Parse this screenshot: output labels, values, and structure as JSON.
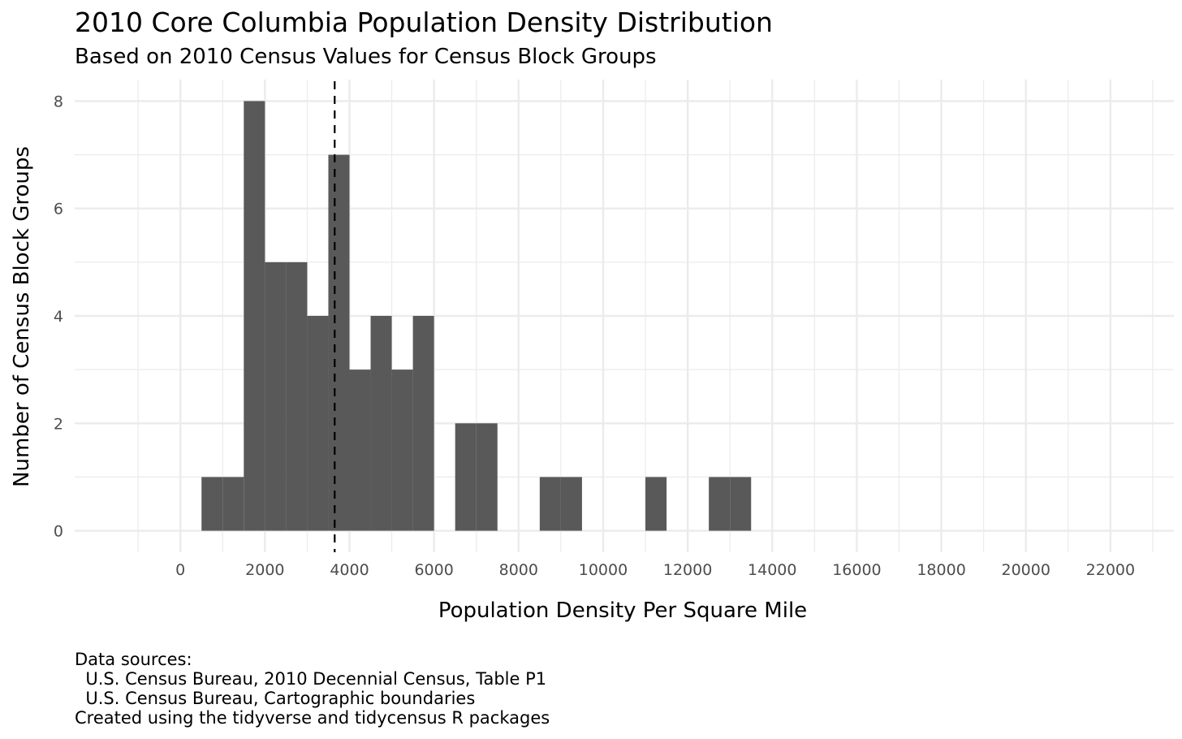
{
  "chart_data": {
    "type": "bar",
    "title": "2010 Core Columbia Population Density Distribution",
    "subtitle": "Based on 2010 Census Values for Census Block Groups",
    "xlabel": "Population Density Per Square Mile",
    "ylabel": "Number of Census Block Groups",
    "bin_width": 500,
    "bins": [
      {
        "x0": 500,
        "x1": 1000,
        "count": 1
      },
      {
        "x0": 1000,
        "x1": 1500,
        "count": 1
      },
      {
        "x0": 1500,
        "x1": 2000,
        "count": 8
      },
      {
        "x0": 2000,
        "x1": 2500,
        "count": 5
      },
      {
        "x0": 2500,
        "x1": 3000,
        "count": 5
      },
      {
        "x0": 3000,
        "x1": 3500,
        "count": 4
      },
      {
        "x0": 3500,
        "x1": 4000,
        "count": 7
      },
      {
        "x0": 4000,
        "x1": 4500,
        "count": 3
      },
      {
        "x0": 4500,
        "x1": 5000,
        "count": 4
      },
      {
        "x0": 5000,
        "x1": 5500,
        "count": 3
      },
      {
        "x0": 5500,
        "x1": 6000,
        "count": 4
      },
      {
        "x0": 6500,
        "x1": 7000,
        "count": 2
      },
      {
        "x0": 7000,
        "x1": 7500,
        "count": 2
      },
      {
        "x0": 8500,
        "x1": 9000,
        "count": 1
      },
      {
        "x0": 9000,
        "x1": 9500,
        "count": 1
      },
      {
        "x0": 11000,
        "x1": 11500,
        "count": 1
      },
      {
        "x0": 12500,
        "x1": 13000,
        "count": 1
      },
      {
        "x0": 13000,
        "x1": 13500,
        "count": 1
      }
    ],
    "reference_line": {
      "x": 3650,
      "style": "dashed"
    },
    "xlim": [
      -2500,
      23500
    ],
    "ylim": [
      -0.4,
      8.4
    ],
    "x_ticks": [
      0,
      2000,
      4000,
      6000,
      8000,
      10000,
      12000,
      14000,
      16000,
      18000,
      20000,
      22000
    ],
    "y_ticks": [
      0,
      2,
      4,
      6,
      8
    ],
    "grid": true,
    "bar_color": "#595959",
    "grid_color": "#ebebeb",
    "caption": [
      "Data sources:",
      "  U.S. Census Bureau, 2010 Decennial Census, Table P1",
      "  U.S. Census Bureau, Cartographic boundaries",
      "Created using the tidyverse and tidycensus R packages"
    ]
  }
}
